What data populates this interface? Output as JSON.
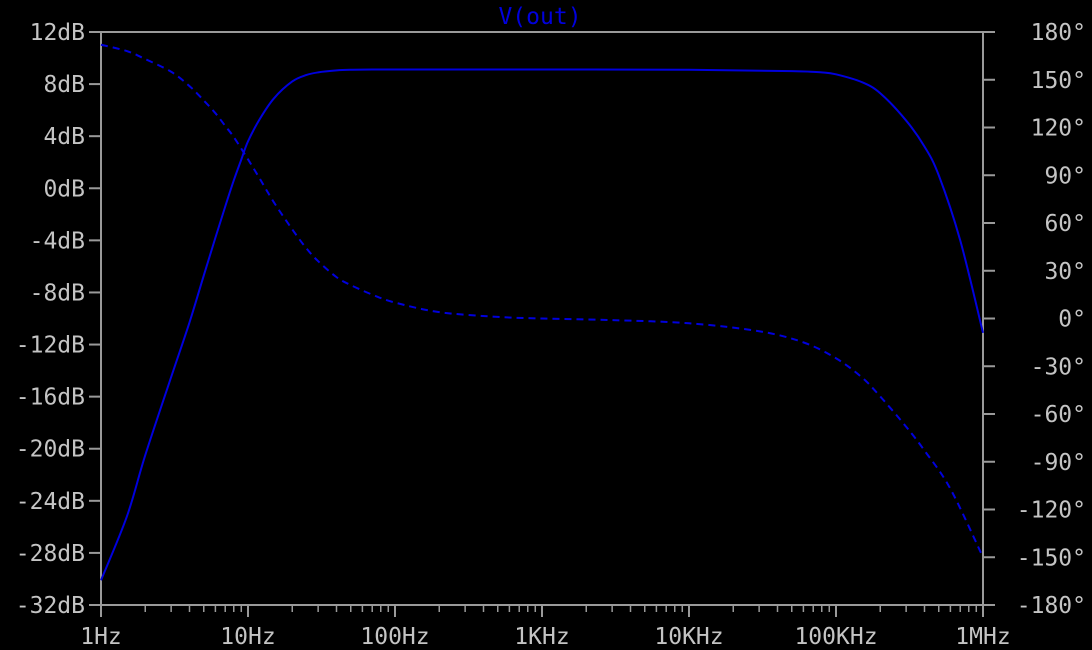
{
  "chart_data": {
    "type": "line",
    "title": "V(out)",
    "x_scale": "log",
    "xlim_hz": [
      1,
      1000000
    ],
    "x_tick_values_hz": [
      1,
      10,
      100,
      1000,
      10000,
      100000,
      1000000
    ],
    "x_tick_labels": [
      "1Hz",
      "10Hz",
      "100Hz",
      "1KHz",
      "10KHz",
      "100KHz",
      "1MHz"
    ],
    "y_left": {
      "unit": "dB",
      "range": [
        -32,
        12
      ],
      "tick_values": [
        12,
        8,
        4,
        0,
        -4,
        -8,
        -12,
        -16,
        -20,
        -24,
        -28,
        -32
      ],
      "tick_labels": [
        "12dB",
        "8dB",
        "4dB",
        "0dB",
        "-4dB",
        "-8dB",
        "-12dB",
        "-16dB",
        "-20dB",
        "-24dB",
        "-28dB",
        "-32dB"
      ]
    },
    "y_right": {
      "unit": "degree",
      "range": [
        -180,
        180
      ],
      "tick_values": [
        180,
        150,
        120,
        90,
        60,
        30,
        0,
        -30,
        -60,
        -90,
        -120,
        -150,
        -180
      ],
      "tick_labels": [
        "180°",
        "150°",
        "120°",
        "90°",
        "60°",
        "30°",
        "0°",
        "-30°",
        "-60°",
        "-90°",
        "-120°",
        "-150°",
        "-180°"
      ]
    },
    "grid": false,
    "series": [
      {
        "style": "solid",
        "axis": "left",
        "color": "#0000dd",
        "x": [
          1,
          1.5,
          2,
          3,
          4,
          5,
          6,
          7,
          8,
          9,
          10,
          12,
          15,
          20,
          25,
          30,
          40,
          50,
          70,
          100,
          1000,
          10000,
          50000,
          80000,
          100000,
          150000,
          200000,
          300000,
          400000,
          500000,
          700000,
          1000000
        ],
        "values": [
          -30.1,
          -25.2,
          -20.5,
          -14.5,
          -10.3,
          -6.7,
          -3.8,
          -1.4,
          0.6,
          2.2,
          3.6,
          5.3,
          6.9,
          8.2,
          8.7,
          8.9,
          9.05,
          9.1,
          9.12,
          9.12,
          9.12,
          9.1,
          9.0,
          8.9,
          8.75,
          8.15,
          7.3,
          5.2,
          3.2,
          1.0,
          -4.0,
          -11.1
        ]
      },
      {
        "style": "dashed",
        "axis": "right",
        "color": "#0000dd",
        "x": [
          1,
          1.5,
          2,
          3,
          4,
          5,
          6,
          7,
          8,
          10,
          12,
          15,
          20,
          25,
          30,
          40,
          50,
          70,
          100,
          200,
          500,
          1000,
          3000,
          10000,
          30000,
          60000,
          100000,
          150000,
          200000,
          300000,
          400000,
          600000,
          1000000
        ],
        "values": [
          172,
          168,
          163,
          155,
          146,
          137,
          129,
          121,
          114,
          100,
          88,
          73,
          56,
          44,
          36,
          26,
          21,
          15,
          10,
          4,
          1,
          0,
          -1,
          -3,
          -8,
          -15,
          -25,
          -37,
          -49,
          -68,
          -83,
          -107,
          -150
        ]
      }
    ]
  }
}
